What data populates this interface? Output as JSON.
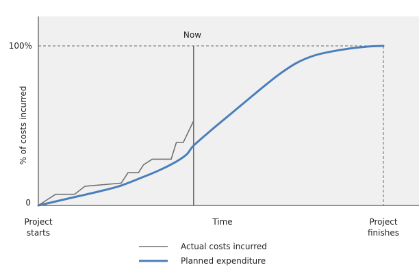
{
  "chart_data": {
    "type": "line",
    "title": "",
    "ylabel": "% of costs incurred",
    "xlabel": "Time",
    "x_start_label": [
      "Project",
      "starts"
    ],
    "x_end_label": [
      "Project",
      "finishes"
    ],
    "ytick_top": "100%",
    "ytick_bottom": "0",
    "now_label": "Now",
    "xlim": [
      0,
      100
    ],
    "ylim": [
      0,
      100
    ],
    "now_x": 45,
    "grid": false,
    "legend_position": "bottom-center",
    "colors": {
      "plot_background": "#f0f0f0",
      "axis": "#555555",
      "actual": "#707070",
      "planned": "#4a7ebb",
      "reference_line": "#666666"
    },
    "series": [
      {
        "name": "Actual costs incurred",
        "style": "thin-gray",
        "points": [
          [
            0,
            0
          ],
          [
            5,
            7
          ],
          [
            10.5,
            7
          ],
          [
            13.5,
            12
          ],
          [
            24,
            14
          ],
          [
            26,
            20.5
          ],
          [
            29,
            20.5
          ],
          [
            30.5,
            25.5
          ],
          [
            33,
            29
          ],
          [
            38.5,
            29
          ],
          [
            40,
            39.5
          ],
          [
            42,
            39.5
          ],
          [
            45,
            53
          ]
        ]
      },
      {
        "name": "Planned expenditure",
        "style": "thick-blue",
        "points": [
          [
            0,
            0
          ],
          [
            6,
            3
          ],
          [
            12,
            6
          ],
          [
            18,
            9
          ],
          [
            24,
            12.5
          ],
          [
            30,
            17.5
          ],
          [
            35,
            22
          ],
          [
            40,
            27.5
          ],
          [
            43,
            32
          ],
          [
            45,
            37.5
          ],
          [
            50,
            47
          ],
          [
            55,
            56
          ],
          [
            60,
            65
          ],
          [
            65,
            74
          ],
          [
            70,
            82.5
          ],
          [
            75,
            89.5
          ],
          [
            80,
            94
          ],
          [
            85,
            96.5
          ],
          [
            90,
            98.3
          ],
          [
            95,
            99.5
          ],
          [
            100,
            100
          ]
        ]
      }
    ]
  }
}
